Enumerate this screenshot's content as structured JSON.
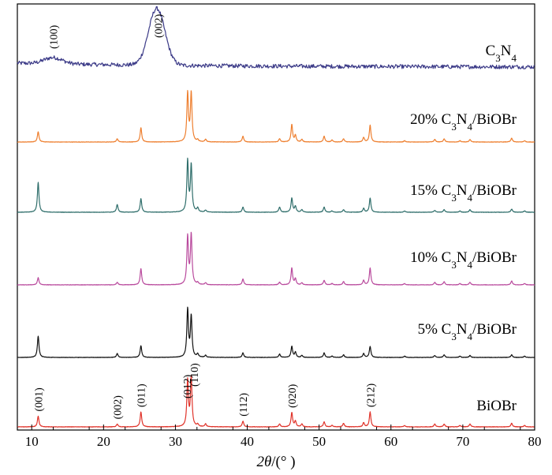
{
  "chart_data": {
    "type": "line",
    "xlabel": {
      "italic": "2θ",
      "unit": "/(° )"
    },
    "xlim": [
      8,
      80
    ],
    "xticks": [
      10,
      20,
      30,
      40,
      50,
      60,
      70,
      80
    ],
    "yticks_shown": false,
    "grid": false,
    "legend": "none",
    "common_peaks_2theta": [
      10.9,
      21.9,
      25.2,
      31.7,
      32.2,
      33.1,
      34.2,
      39.4,
      44.5,
      46.2,
      46.7,
      47.6,
      50.7,
      51.8,
      53.4,
      56.2,
      57.1,
      61.9,
      66.1,
      67.4,
      69.6,
      71.0,
      76.8,
      78.6
    ],
    "series": [
      {
        "name_parts": [
          "C",
          "3",
          "N",
          "4",
          ""
        ],
        "color": "#3b3a87",
        "noise": true,
        "broad_peaks": [
          {
            "center": 13.0,
            "height": 0.11,
            "width": 1.8
          },
          {
            "center": 27.4,
            "height": 1.0,
            "width": 1.6
          }
        ],
        "peak_labels": [
          {
            "text": "(100)",
            "x": 13.0
          },
          {
            "text": "(002)",
            "x": 27.6
          }
        ]
      },
      {
        "name_parts": [
          "20% C",
          "3",
          "N",
          "4",
          "/BiOBr"
        ],
        "color": "#ee7f2f",
        "peaks": [
          0.16,
          0.05,
          0.22,
          0.75,
          0.75,
          0.03,
          0.04,
          0.09,
          0.05,
          0.27,
          0.1,
          0.04,
          0.09,
          0.03,
          0.05,
          0.07,
          0.26,
          0.02,
          0.04,
          0.05,
          0.02,
          0.04,
          0.06,
          0.02
        ]
      },
      {
        "name_parts": [
          "15% C",
          "3",
          "N",
          "4",
          "/BiOBr"
        ],
        "color": "#2f6e6b",
        "peaks": [
          0.46,
          0.12,
          0.21,
          0.79,
          0.72,
          0.06,
          0.03,
          0.08,
          0.08,
          0.22,
          0.09,
          0.04,
          0.08,
          0.02,
          0.04,
          0.06,
          0.22,
          0.02,
          0.03,
          0.04,
          0.02,
          0.04,
          0.05,
          0.02
        ]
      },
      {
        "name_parts": [
          "10% C",
          "3",
          "N",
          "4",
          "/BiOBr"
        ],
        "color": "#b94a9d",
        "peaks": [
          0.11,
          0.04,
          0.25,
          0.74,
          0.77,
          0.03,
          0.03,
          0.09,
          0.04,
          0.26,
          0.09,
          0.03,
          0.07,
          0.02,
          0.05,
          0.07,
          0.26,
          0.02,
          0.04,
          0.05,
          0.02,
          0.04,
          0.06,
          0.02
        ]
      },
      {
        "name_parts": [
          "5% C",
          "3",
          "N",
          "4",
          "/BiOBr"
        ],
        "color": "#111111",
        "peaks": [
          0.33,
          0.06,
          0.18,
          0.74,
          0.63,
          0.05,
          0.03,
          0.07,
          0.05,
          0.17,
          0.08,
          0.03,
          0.07,
          0.02,
          0.04,
          0.06,
          0.17,
          0.02,
          0.03,
          0.04,
          0.02,
          0.03,
          0.04,
          0.02
        ]
      },
      {
        "name_parts": [
          "BiOBr",
          "",
          "",
          "",
          ""
        ],
        "color": "#e0332a",
        "peaks": [
          0.15,
          0.04,
          0.21,
          0.65,
          0.69,
          0.03,
          0.04,
          0.08,
          0.04,
          0.2,
          0.08,
          0.04,
          0.07,
          0.02,
          0.05,
          0.06,
          0.21,
          0.02,
          0.04,
          0.04,
          0.02,
          0.04,
          0.05,
          0.02
        ],
        "peak_labels": [
          {
            "text": "(001)",
            "x": 10.9
          },
          {
            "text": "(002)",
            "x": 21.9
          },
          {
            "text": "(011)",
            "x": 25.2
          },
          {
            "text": "(012)",
            "x": 31.6
          },
          {
            "text": "(110)",
            "x": 32.6
          },
          {
            "text": "(112)",
            "x": 39.4
          },
          {
            "text": "(020)",
            "x": 46.2
          },
          {
            "text": "(212)",
            "x": 57.1
          }
        ]
      }
    ]
  }
}
